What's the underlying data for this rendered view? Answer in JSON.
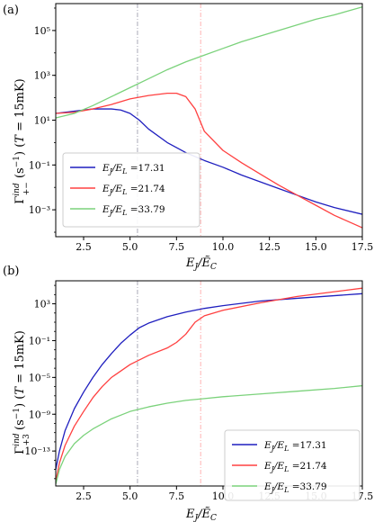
{
  "chart_data": [
    {
      "panel": "(a)",
      "type": "line",
      "yscale": "log",
      "xlabel": "E_J/Ẽ_C",
      "ylabel": "Γ_{+−}^{ind} (s⁻¹) (T = 15mK)",
      "xlim": [
        1,
        17.5
      ],
      "ylim_exp": [
        -4.2,
        6.2
      ],
      "xticks": [
        "2.5",
        "5.0",
        "7.5",
        "10.0",
        "12.5",
        "15.0",
        "17.5"
      ],
      "xtick_values": [
        2.5,
        5.0,
        7.5,
        10.0,
        12.5,
        15.0,
        17.5
      ],
      "yticks": [
        "10⁵",
        "10³",
        "10¹",
        "10⁻¹",
        "10⁻³"
      ],
      "ytick_exps": [
        5,
        3,
        1,
        -1,
        -3
      ],
      "vlines": [
        {
          "x": 5.4,
          "color": "#a9aab8"
        },
        {
          "x": 8.8,
          "color": "#ffb3b3"
        }
      ],
      "legend_position": "lower-left",
      "series": [
        {
          "name": "E_J/E_L =17.31",
          "color": "#1f1fbf",
          "x": [
            1,
            2,
            3,
            4,
            4.5,
            5,
            5.5,
            6,
            7,
            8,
            9,
            10,
            11,
            12,
            13,
            14,
            15,
            16,
            17.5
          ],
          "y_exp": [
            1.3,
            1.4,
            1.5,
            1.5,
            1.45,
            1.3,
            1.0,
            0.6,
            0.0,
            -0.45,
            -0.8,
            -1.1,
            -1.45,
            -1.75,
            -2.05,
            -2.35,
            -2.65,
            -2.9,
            -3.2
          ]
        },
        {
          "name": "E_J/E_L =21.74",
          "color": "#ff4040",
          "x": [
            1,
            2,
            3,
            4,
            5,
            6,
            7,
            7.5,
            8,
            8.5,
            9,
            10,
            11,
            12,
            13,
            14,
            15,
            16,
            17.5
          ],
          "y_exp": [
            1.3,
            1.35,
            1.5,
            1.7,
            1.95,
            2.1,
            2.2,
            2.2,
            2.05,
            1.5,
            0.5,
            -0.35,
            -0.9,
            -1.4,
            -1.9,
            -2.35,
            -2.8,
            -3.25,
            -3.8
          ]
        },
        {
          "name": "E_J/E_L =33.79",
          "color": "#7bd27b",
          "x": [
            1,
            2,
            3,
            4,
            5,
            6,
            7,
            8,
            9,
            10,
            11,
            12,
            13,
            14,
            15,
            16,
            17.5
          ],
          "y_exp": [
            1.1,
            1.3,
            1.65,
            2.05,
            2.45,
            2.85,
            3.25,
            3.6,
            3.9,
            4.2,
            4.5,
            4.75,
            5.0,
            5.25,
            5.5,
            5.7,
            6.05
          ]
        }
      ]
    },
    {
      "panel": "(b)",
      "type": "line",
      "yscale": "log",
      "xlabel": "E_J/Ẽ_C",
      "ylabel": "Γ_{+3}^{ind} (s⁻¹) (T = 15mK)",
      "xlim": [
        1,
        17.5
      ],
      "ylim_exp": [
        -16.8,
        5.5
      ],
      "xticks": [
        "2.5",
        "5.0",
        "7.5",
        "10.0",
        "12.5",
        "15.0",
        "17.5"
      ],
      "xtick_values": [
        2.5,
        5.0,
        7.5,
        10.0,
        12.5,
        15.0,
        17.5
      ],
      "yticks": [
        "10³",
        "10⁻¹",
        "10⁻⁵",
        "10⁻⁹",
        "10⁻¹³"
      ],
      "ytick_exps": [
        3,
        -1,
        -5,
        -9,
        -13
      ],
      "vlines": [
        {
          "x": 5.4,
          "color": "#a9aab8"
        },
        {
          "x": 8.8,
          "color": "#ffb3b3"
        }
      ],
      "legend_position": "lower-right",
      "series": [
        {
          "name": "E_J/E_L =17.31",
          "color": "#1f1fbf",
          "x": [
            1,
            1.2,
            1.5,
            2,
            2.5,
            3,
            3.5,
            4,
            4.5,
            5,
            5.5,
            6,
            7,
            8,
            9,
            10,
            12,
            14,
            17.5
          ],
          "y_exp": [
            -15.0,
            -13.0,
            -10.8,
            -8.4,
            -6.6,
            -5.0,
            -3.6,
            -2.4,
            -1.3,
            -0.4,
            0.4,
            0.9,
            1.6,
            2.1,
            2.5,
            2.8,
            3.3,
            3.6,
            4.1
          ]
        },
        {
          "name": "E_J/E_L =21.74",
          "color": "#ff4040",
          "x": [
            1,
            1.2,
            1.5,
            2,
            2.5,
            3,
            3.5,
            4,
            5,
            6,
            7,
            7.5,
            8,
            8.5,
            9,
            10,
            12,
            14,
            17.5
          ],
          "y_exp": [
            -16.3,
            -14.3,
            -12.4,
            -10.3,
            -8.7,
            -7.2,
            -6.0,
            -5.0,
            -3.6,
            -2.6,
            -1.8,
            -1.2,
            -0.3,
            1.0,
            1.7,
            2.3,
            3.1,
            3.8,
            4.7
          ]
        },
        {
          "name": "E_J/E_L =33.79",
          "color": "#7bd27b",
          "x": [
            1,
            1.2,
            1.5,
            2,
            2.5,
            3,
            4,
            5,
            6,
            7,
            8,
            9,
            10,
            12,
            14,
            16,
            17.5
          ],
          "y_exp": [
            -16.6,
            -15.0,
            -13.6,
            -12.2,
            -11.3,
            -10.6,
            -9.5,
            -8.7,
            -8.2,
            -7.8,
            -7.5,
            -7.3,
            -7.1,
            -6.8,
            -6.5,
            -6.2,
            -5.9
          ]
        }
      ]
    }
  ]
}
